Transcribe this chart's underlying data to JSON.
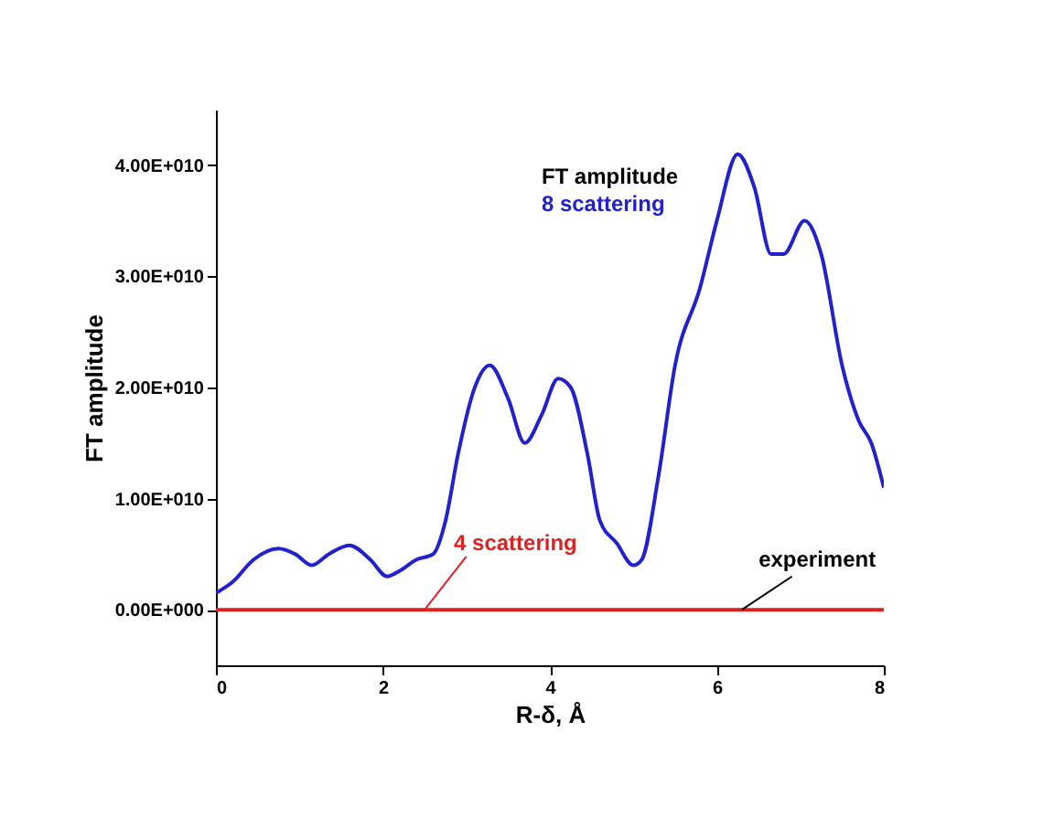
{
  "chart_data": {
    "type": "line",
    "xlabel": "R-δ, Å",
    "ylabel": "FT amplitude",
    "xlim": [
      0,
      8
    ],
    "xticks": [
      0,
      2,
      4,
      6,
      8
    ],
    "ylim": [
      -5000000000,
      45000000000
    ],
    "yticks": [
      {
        "value": 0,
        "label": "0.00E+000"
      },
      {
        "value": 10000000000,
        "label": "1.00E+010"
      },
      {
        "value": 20000000000,
        "label": "2.00E+010"
      },
      {
        "value": 30000000000,
        "label": "3.00E+010"
      },
      {
        "value": 40000000000,
        "label": "4.00E+010"
      }
    ],
    "grid": false,
    "marker": "none",
    "line_style": "solid",
    "series": [
      {
        "name": "8 scattering",
        "color": "#2222cc",
        "x": [
          0,
          0.2,
          0.45,
          0.75,
          0.95,
          1.15,
          1.35,
          1.6,
          1.85,
          2.05,
          2.2,
          2.4,
          2.6,
          2.75,
          2.9,
          3.1,
          3.28,
          3.5,
          3.7,
          3.9,
          4.1,
          4.25,
          4.45,
          4.6,
          4.8,
          5.0,
          5.1,
          5.3,
          5.5,
          5.8,
          6.0,
          6.25,
          6.45,
          6.65,
          6.8,
          7.05,
          7.25,
          7.5,
          7.7,
          7.85,
          8.0
        ],
        "values": [
          1500000000,
          2500000000,
          4500000000,
          5500000000,
          5000000000,
          4000000000,
          5000000000,
          5800000000,
          4500000000,
          3000000000,
          3500000000,
          4500000000,
          5000000000,
          8000000000,
          14000000000,
          20000000000,
          22000000000,
          19000000000,
          15000000000,
          17500000000,
          20800000000,
          20000000000,
          14000000000,
          8000000000,
          6000000000,
          4000000000,
          4500000000,
          12000000000,
          22000000000,
          29000000000,
          35000000000,
          41000000000,
          38000000000,
          32000000000,
          32000000000,
          35000000000,
          32000000000,
          22000000000,
          17000000000,
          15000000000,
          11000000000
        ]
      },
      {
        "name": "4 scattering",
        "color": "#dd2222",
        "x": [
          0,
          8
        ],
        "values": [
          0,
          0
        ]
      }
    ],
    "annotations": [
      "FT amplitude",
      {
        "text": "experiment",
        "x": 6.3,
        "y": 0
      }
    ]
  }
}
